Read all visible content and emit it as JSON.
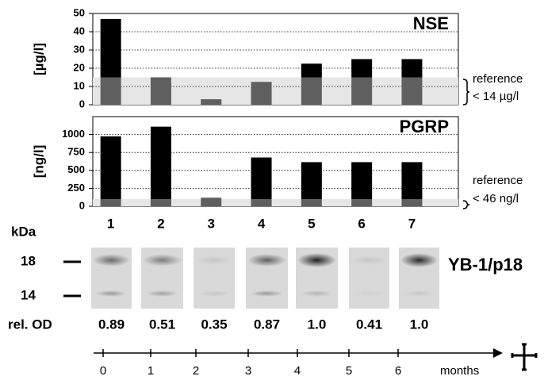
{
  "chart_data": [
    {
      "type": "bar",
      "title": "NSE",
      "y_label": "[µg/l]",
      "categories": [
        null,
        null,
        null,
        null,
        null,
        null,
        null
      ],
      "series": [
        {
          "color": "#5f5f5f",
          "values": [
            15,
            15,
            3,
            12.5,
            15,
            15,
            15
          ]
        },
        {
          "color": "#000000",
          "values": [
            32,
            0,
            0,
            0,
            7.5,
            10,
            10
          ]
        }
      ],
      "ylim": [
        0,
        50
      ],
      "yticks": [
        0,
        10,
        20,
        30,
        40,
        50
      ],
      "grid": true,
      "reference_band": [
        0,
        15
      ],
      "annotations": [
        "reference",
        "< 14 µg/l"
      ]
    },
    {
      "type": "bar",
      "title": "PGRP",
      "y_label": "[ng/l]",
      "categories": [
        "1",
        "2",
        "3",
        "4",
        "5",
        "6",
        "7"
      ],
      "series": [
        {
          "color": "#5f5f5f",
          "values": [
            100,
            100,
            120,
            100,
            100,
            100,
            100
          ]
        },
        {
          "color": "#000000",
          "values": [
            875,
            1010,
            0,
            580,
            515,
            515,
            515
          ]
        }
      ],
      "ylim": [
        0,
        1250
      ],
      "yticks": [
        0,
        250,
        500,
        750,
        1000
      ],
      "grid": true,
      "reference_band": [
        0,
        100
      ],
      "annotations": [
        "reference",
        "< 46 ng/l"
      ]
    }
  ],
  "blot": {
    "unit_label": "kDa",
    "markers": [
      "18",
      "14"
    ],
    "label": "YB-1/p18",
    "rel_od_label": "rel. OD",
    "rel_od": [
      "0.89",
      "0.51",
      "0.35",
      "0.87",
      "1.0",
      "0.41",
      "1.0"
    ]
  },
  "timeline": {
    "ticks": [
      "0",
      "1",
      "2",
      "3",
      "4",
      "5",
      "6"
    ],
    "unit": "months"
  }
}
